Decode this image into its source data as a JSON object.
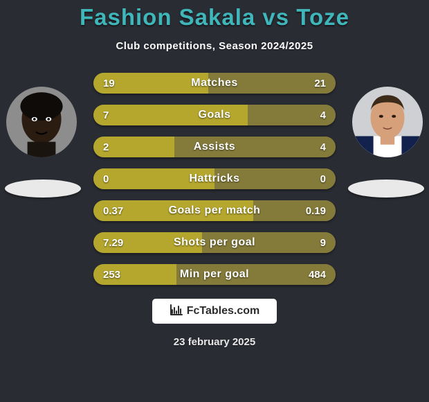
{
  "title": "Fashion Sakala vs Toze",
  "subtitle": "Club competitions, Season 2024/2025",
  "date": "23 february 2025",
  "colors": {
    "background": "#2a2c34",
    "title": "#3fb6b9",
    "subtitle": "#ffffff",
    "date": "#e8e8e8",
    "bar_track": "#585a42",
    "bar_left": "#b5a72e",
    "bar_right": "#847b3a",
    "bar_label": "#ffffff",
    "shadow_ellipse": "#e9e9e9",
    "watermark_bg": "#ffffff",
    "watermark_text": "#2b2b2b",
    "avatar_border": "#2a2c34"
  },
  "avatars": {
    "left": {
      "skin": "#2b1c12",
      "bg": "#8d8d8d"
    },
    "right": {
      "skin": "#d6a07a",
      "bg": "#cfd0d4",
      "shirt_dark": "#12224c",
      "shirt_light": "#ffffff"
    }
  },
  "bars": [
    {
      "label": "Matches",
      "left": "19",
      "right": "21",
      "left_pct": 47.5,
      "right_pct": 52.5
    },
    {
      "label": "Goals",
      "left": "7",
      "right": "4",
      "left_pct": 63.6,
      "right_pct": 36.4
    },
    {
      "label": "Assists",
      "left": "2",
      "right": "4",
      "left_pct": 33.3,
      "right_pct": 66.7
    },
    {
      "label": "Hattricks",
      "left": "0",
      "right": "0",
      "left_pct": 50.0,
      "right_pct": 50.0
    },
    {
      "label": "Goals per match",
      "left": "0.37",
      "right": "0.19",
      "left_pct": 66.1,
      "right_pct": 33.9
    },
    {
      "label": "Shots per goal",
      "left": "7.29",
      "right": "9",
      "left_pct": 44.8,
      "right_pct": 55.2
    },
    {
      "label": "Min per goal",
      "left": "253",
      "right": "484",
      "left_pct": 34.3,
      "right_pct": 65.7
    }
  ],
  "watermark": {
    "icon": "📊",
    "text": "FcTables.com"
  }
}
